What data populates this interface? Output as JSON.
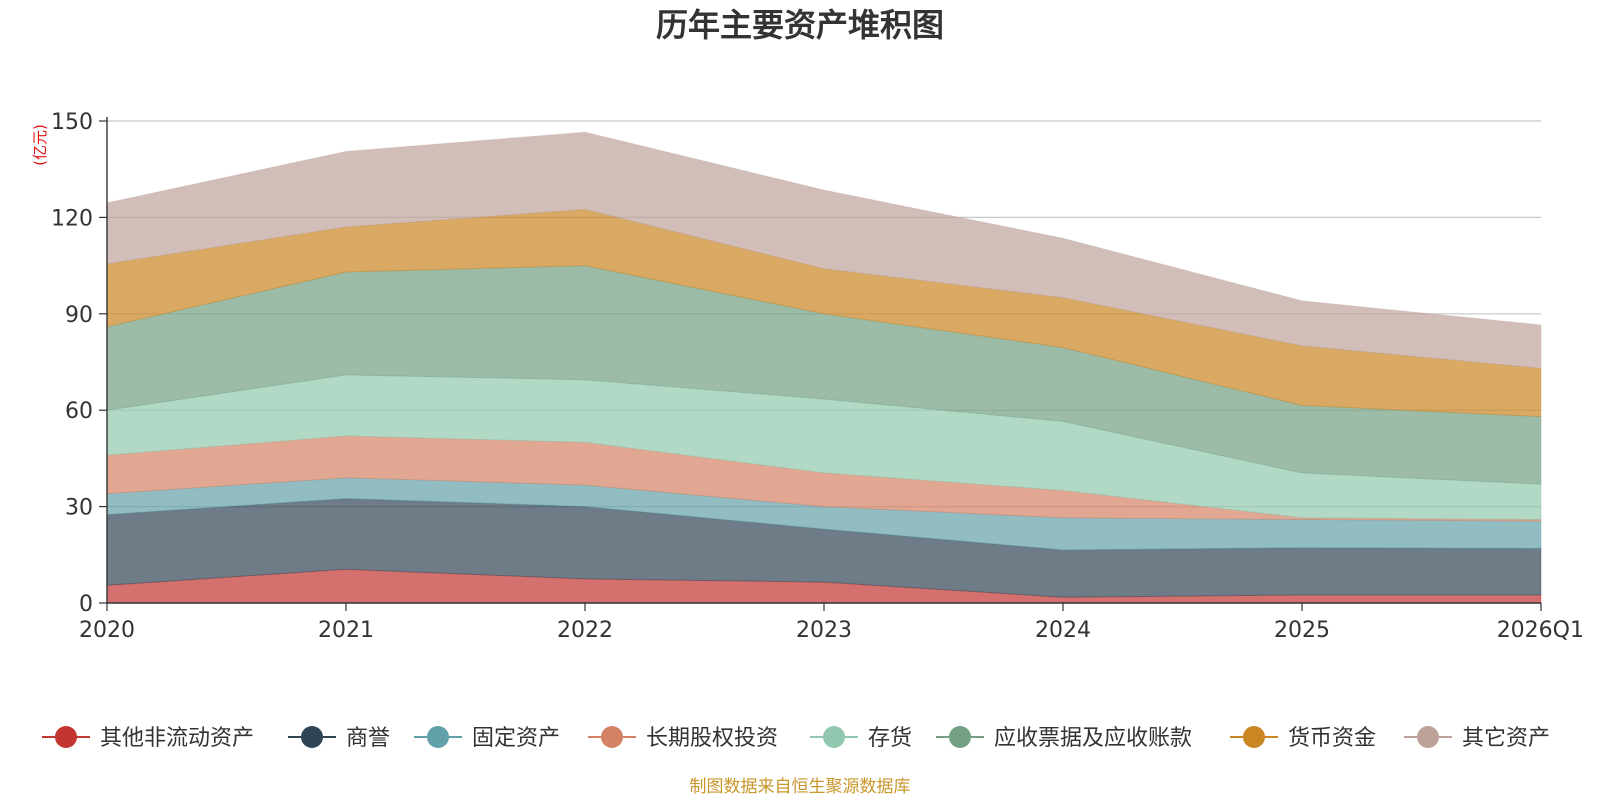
{
  "chart_data": {
    "type": "area",
    "stacked": true,
    "title": "历年主要资产堆积图",
    "ylabel": "(亿元)",
    "xlabel": "",
    "categories": [
      "2020",
      "2021",
      "2022",
      "2023",
      "2024",
      "2025",
      "2026Q1"
    ],
    "ylim": [
      0,
      150
    ],
    "yticks": [
      0,
      30,
      60,
      90,
      120,
      150
    ],
    "grid": true,
    "legend_position": "bottom",
    "series": [
      {
        "name": "其他非流动资产",
        "color": "#c23531",
        "values": [
          5.5,
          10.5,
          7.5,
          6.5,
          1.8,
          2.5,
          2.5
        ]
      },
      {
        "name": "商誉",
        "color": "#2f4554",
        "values": [
          22.0,
          22.0,
          22.5,
          16.5,
          14.7,
          14.7,
          14.5
        ]
      },
      {
        "name": "固定资产",
        "color": "#61a0a8",
        "values": [
          6.5,
          6.5,
          6.7,
          7.0,
          10.0,
          8.8,
          8.5
        ]
      },
      {
        "name": "长期股权投资",
        "color": "#d48265",
        "values": [
          12.0,
          13.0,
          13.3,
          10.5,
          8.5,
          0.5,
          0.5
        ]
      },
      {
        "name": "存货",
        "color": "#91c7ae",
        "values": [
          14.0,
          19.0,
          19.5,
          23.0,
          21.5,
          14.0,
          11.0
        ]
      },
      {
        "name": "应收票据及应收账款",
        "color": "#749f83",
        "values": [
          26.0,
          32.0,
          35.5,
          26.5,
          23.0,
          21.0,
          21.0
        ]
      },
      {
        "name": "货币资金",
        "color": "#ca8622",
        "values": [
          19.5,
          14.0,
          17.5,
          14.0,
          15.5,
          18.5,
          15.0
        ]
      },
      {
        "name": "其它资产",
        "color": "#bda29a",
        "values": [
          19.0,
          23.5,
          24.0,
          24.5,
          18.5,
          14.0,
          13.5
        ]
      }
    ]
  },
  "footer": {
    "source": "制图数据来自恒生聚源数据库"
  }
}
